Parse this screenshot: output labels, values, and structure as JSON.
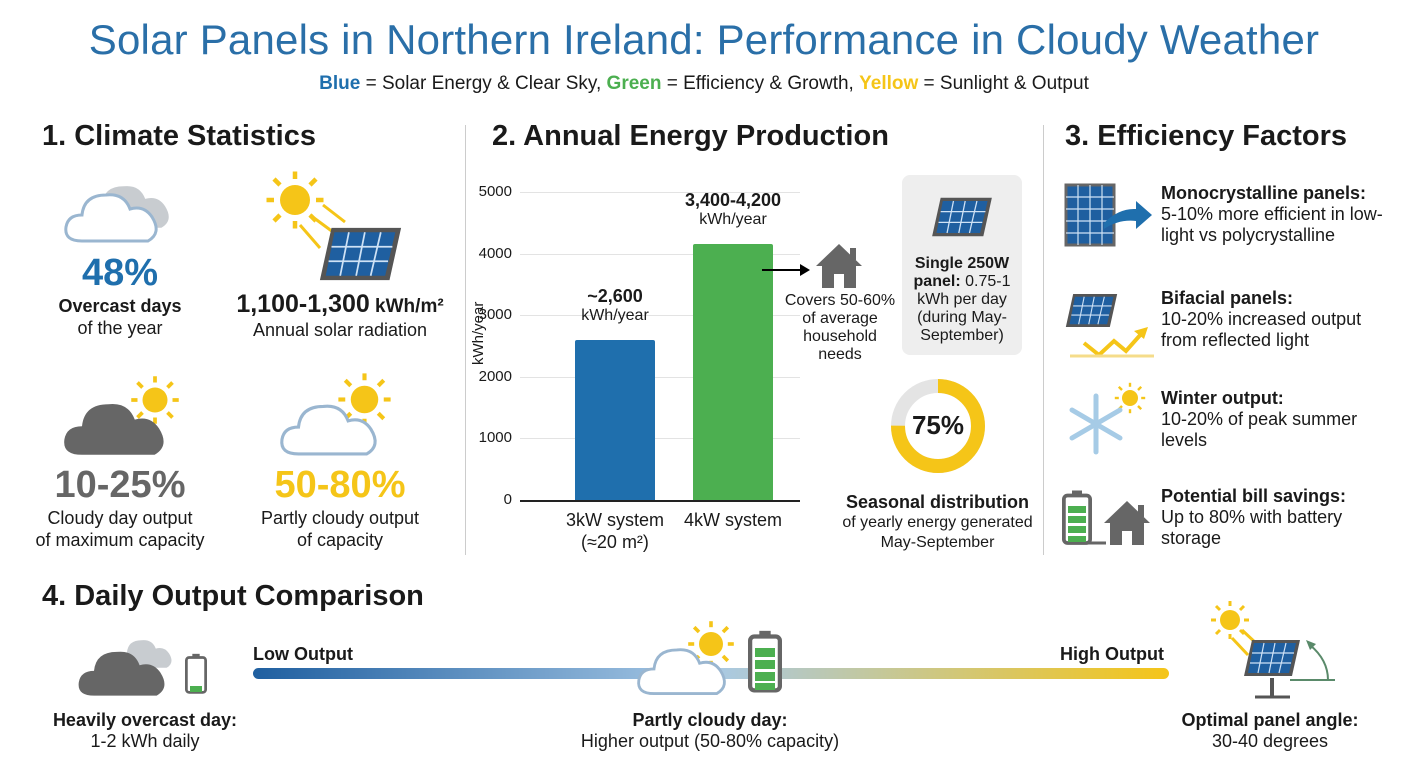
{
  "title": "Solar Panels in Northern Ireland: Performance in Cloudy Weather",
  "legend": {
    "blue": "Blue",
    "blue_text": " = Solar Energy & Clear Sky, ",
    "green": "Green",
    "green_text": " = Efficiency & Growth, ",
    "yellow": "Yellow",
    "yellow_text": " = Sunlight & Output"
  },
  "colors": {
    "blue": "#1f6fad",
    "green": "#4caf50",
    "yellow": "#f5c518",
    "gray": "#666666"
  },
  "climate": {
    "heading": "1. Climate Statistics",
    "overcast": {
      "value": "48%",
      "label": "Overcast days",
      "label2": "of the year"
    },
    "radiation": {
      "value": "1,100-1,300",
      "unit": " kWh/m²",
      "label": "Annual solar radiation"
    },
    "cloudy": {
      "value": "10-25%",
      "label": "Cloudy day output",
      "label2": "of maximum capacity"
    },
    "partly": {
      "value": "50-80%",
      "label": "Partly cloudy output",
      "label2": "of capacity"
    }
  },
  "energy": {
    "heading": "2. Annual Energy Production",
    "covers": [
      "Covers 50-60%",
      "of average",
      "household",
      "needs"
    ],
    "panel_bold": "Single 250W panel:",
    "panel_text": " 0.75-1 kWh per day (during May-September)",
    "donut_value": "75%",
    "donut_fraction": 0.75,
    "seasonal_title": "Seasonal distribution",
    "seasonal_text": "of yearly energy generated",
    "seasonal_text2": "May-September"
  },
  "chart_data": {
    "type": "bar",
    "ylabel": "kWh/year",
    "ylim": [
      0,
      5000
    ],
    "yticks": [
      "0",
      "1000",
      "2000",
      "3000",
      "4000",
      "5000"
    ],
    "grid": true,
    "categories": [
      "3kW system",
      "4kW system"
    ],
    "category_sub": [
      "(≈20 m²)",
      ""
    ],
    "values": [
      2600,
      4150
    ],
    "data_labels": [
      {
        "value": "~2,600",
        "unit": "kWh/year"
      },
      {
        "value": "3,400-4,200",
        "unit": "kWh/year"
      }
    ],
    "bar_colors": [
      "#1f6fad",
      "#4caf50"
    ]
  },
  "efficiency": {
    "heading": "3. Efficiency Factors",
    "items": [
      {
        "title": "Monocrystalline panels:",
        "text": "5-10% more efficient in low-light vs polycrystalline"
      },
      {
        "title": "Bifacial panels:",
        "text": "10-20% increased output from reflected light"
      },
      {
        "title": "Winter output:",
        "text": "10-20% of peak summer levels"
      },
      {
        "title": "Potential bill savings:",
        "text": "Up to 80% with battery storage"
      }
    ]
  },
  "daily": {
    "heading": "4. Daily Output Comparison",
    "low": "Low Output",
    "high": "High Output",
    "overcast": {
      "title": "Heavily overcast day:",
      "text": "1-2 kWh daily"
    },
    "partly": {
      "title": "Partly cloudy day:",
      "text": "Higher output (50-80% capacity)"
    },
    "angle": {
      "title": "Optimal panel angle:",
      "text": "30-40 degrees"
    }
  }
}
